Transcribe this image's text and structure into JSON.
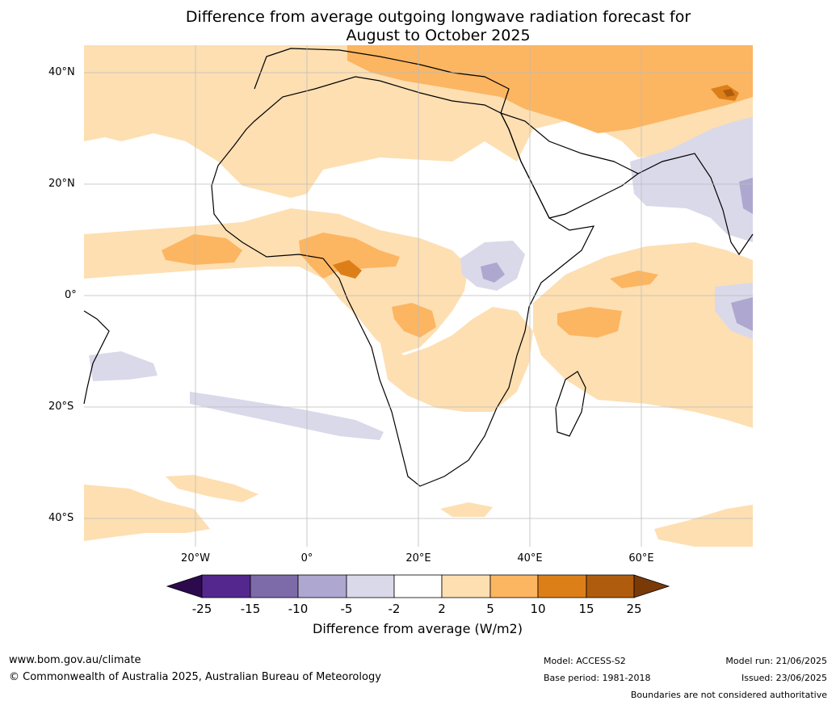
{
  "title_line1": "Difference from average outgoing longwave radiation forecast for",
  "title_line2": "August to October 2025",
  "map": {
    "lat_labels": [
      "40°N",
      "20°N",
      "0°",
      "20°S",
      "40°S"
    ],
    "lon_labels": [
      "20°W",
      "0°",
      "20°E",
      "40°E",
      "60°E"
    ],
    "lat_range": [
      -45,
      45
    ],
    "lon_range": [
      -40,
      80
    ],
    "grid": true
  },
  "legend": {
    "title": "Difference from average (W/m2)",
    "ticks": [
      "-25",
      "-15",
      "-10",
      "-5",
      "-2",
      "2",
      "5",
      "10",
      "15",
      "25"
    ],
    "colors": [
      "#2d0a4e",
      "#54278f",
      "#7d6ba9",
      "#aea7cf",
      "#d9d9ea",
      "#ffffff",
      "#fddfb2",
      "#fcb561",
      "#dd7f18",
      "#b05c0e",
      "#7a3a08"
    ]
  },
  "footer": {
    "url": "www.bom.gov.au/climate",
    "copyright": "© Commonwealth of Australia 2025, Australian Bureau of Meteorology",
    "model": "Model: ACCESS-S2",
    "base_period": "Base period: 1981-2018",
    "model_run": "Model run: 21/06/2025",
    "issued": "Issued: 23/06/2025",
    "disclaimer": "Boundaries are not considered authoritative"
  }
}
